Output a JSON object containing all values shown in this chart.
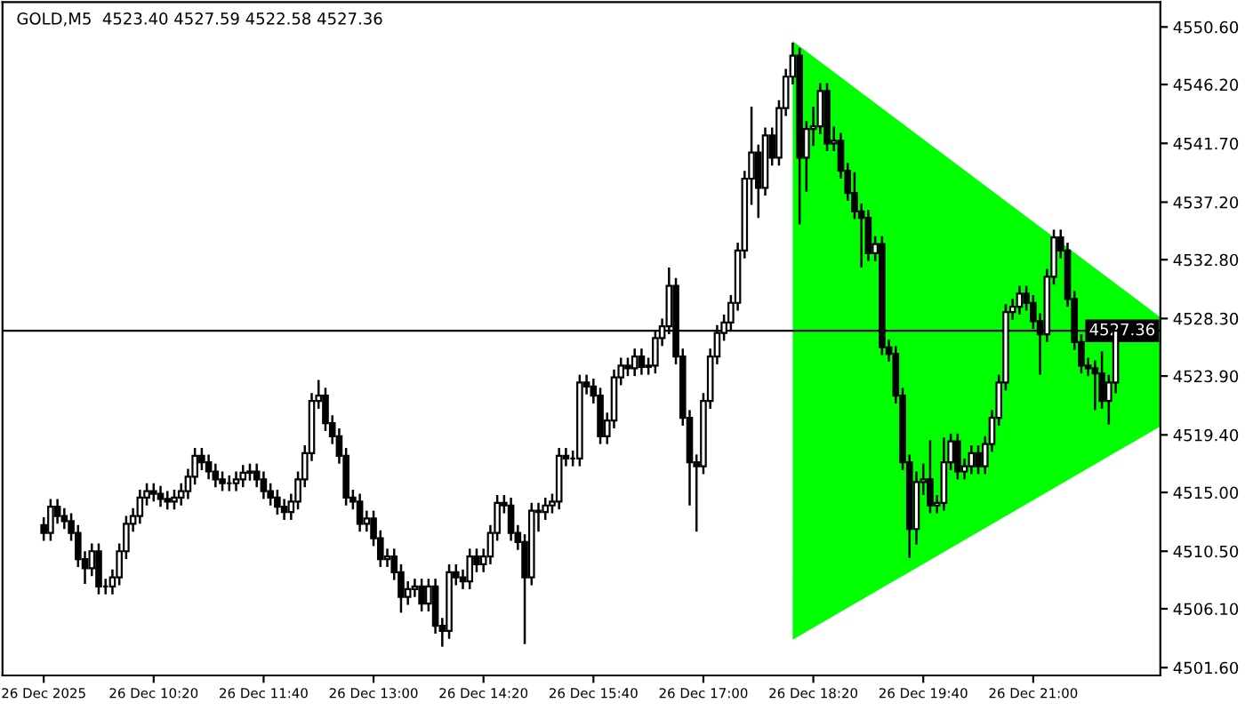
{
  "chart_data": {
    "type": "candlestick",
    "title": "GOLD,M5  4523.40 4527.59 4522.58 4527.36",
    "categories": [
      "26 Dec 2025",
      null,
      null,
      null,
      null,
      null,
      null,
      null,
      null,
      null,
      null,
      null,
      null,
      null,
      null,
      null,
      "26 Dec 10:20",
      null,
      null,
      null,
      null,
      null,
      null,
      null,
      null,
      null,
      null,
      null,
      null,
      null,
      null,
      null,
      "26 Dec 11:40",
      null,
      null,
      null,
      null,
      null,
      null,
      null,
      null,
      null,
      null,
      null,
      null,
      null,
      null,
      null,
      "26 Dec 13:00",
      null,
      null,
      null,
      null,
      null,
      null,
      null,
      null,
      null,
      null,
      null,
      null,
      null,
      null,
      null,
      "26 Dec 14:20",
      null,
      null,
      null,
      null,
      null,
      null,
      null,
      null,
      null,
      null,
      null,
      null,
      null,
      null,
      null,
      "26 Dec 15:40",
      null,
      null,
      null,
      null,
      null,
      null,
      null,
      null,
      null,
      null,
      null,
      null,
      null,
      null,
      null,
      "26 Dec 17:00",
      null,
      null,
      null,
      null,
      null,
      null,
      null,
      null,
      null,
      null,
      null,
      null,
      null,
      null,
      null,
      "26 Dec 18:20",
      null,
      null,
      null,
      null,
      null,
      null,
      null,
      null,
      null,
      null,
      null,
      null,
      null,
      null,
      null,
      "26 Dec 19:40",
      null,
      null,
      null,
      null,
      null,
      null,
      null,
      null,
      null,
      null,
      null,
      null,
      null,
      null,
      null,
      "26 Dec 21:00",
      null,
      null,
      null,
      null,
      null,
      null,
      null,
      null,
      null,
      null,
      null,
      null
    ],
    "ohlc": [
      [
        4512.5,
        4513.1,
        4511.3,
        4511.9
      ],
      [
        4511.9,
        4514.5,
        4511.3,
        4513.9
      ],
      [
        4513.9,
        4514.5,
        4512.6,
        4513.2
      ],
      [
        4513.2,
        4513.8,
        4512.2,
        4512.8
      ],
      [
        4512.8,
        4513.4,
        4511.3,
        4511.9
      ],
      [
        4511.9,
        4512.5,
        4509.3,
        4509.9
      ],
      [
        4509.9,
        4510.5,
        4508.0,
        4509.2
      ],
      [
        4509.2,
        4511.1,
        4508.6,
        4510.5
      ],
      [
        4510.5,
        4511.1,
        4507.2,
        4507.8
      ],
      [
        4507.8,
        4508.4,
        4507.2,
        4507.8
      ],
      [
        4507.8,
        4509.1,
        4507.2,
        4508.5
      ],
      [
        4508.5,
        4511.1,
        4507.9,
        4510.5
      ],
      [
        4510.5,
        4513.2,
        4509.9,
        4512.6
      ],
      [
        4512.6,
        4513.8,
        4512.0,
        4513.2
      ],
      [
        4513.2,
        4515.2,
        4512.6,
        4514.6
      ],
      [
        4514.6,
        4515.7,
        4514.0,
        4515.1
      ],
      [
        4515.1,
        4515.7,
        4514.3,
        4514.9
      ],
      [
        4514.9,
        4515.5,
        4513.9,
        4514.5
      ],
      [
        4514.5,
        4515.1,
        4513.7,
        4514.3
      ],
      [
        4514.3,
        4515.2,
        4513.7,
        4514.6
      ],
      [
        4514.6,
        4515.7,
        4514.0,
        4515.1
      ],
      [
        4515.1,
        4516.8,
        4514.5,
        4516.2
      ],
      [
        4516.2,
        4518.4,
        4515.6,
        4517.8
      ],
      [
        4517.8,
        4518.4,
        4516.7,
        4517.3
      ],
      [
        4517.3,
        4517.9,
        4516.0,
        4516.6
      ],
      [
        4516.6,
        4517.2,
        4515.4,
        4516.0
      ],
      [
        4516.0,
        4516.6,
        4515.1,
        4515.7
      ],
      [
        4515.7,
        4516.3,
        4515.1,
        4515.7
      ],
      [
        4515.7,
        4516.6,
        4515.1,
        4516.0
      ],
      [
        4516.0,
        4517.1,
        4515.4,
        4516.5
      ],
      [
        4516.5,
        4517.2,
        4515.9,
        4516.6
      ],
      [
        4516.6,
        4517.2,
        4515.4,
        4516.0
      ],
      [
        4516.0,
        4516.6,
        4514.5,
        4515.1
      ],
      [
        4515.1,
        4515.7,
        4514.0,
        4514.6
      ],
      [
        4514.6,
        4515.2,
        4513.3,
        4513.9
      ],
      [
        4513.9,
        4514.5,
        4512.9,
        4513.5
      ],
      [
        4513.5,
        4514.9,
        4512.9,
        4514.3
      ],
      [
        4514.3,
        4516.6,
        4513.7,
        4516.0
      ],
      [
        4516.0,
        4518.6,
        4515.4,
        4518.0
      ],
      [
        4518.0,
        4522.6,
        4517.4,
        4522.0
      ],
      [
        4522.0,
        4523.6,
        4521.4,
        4522.4
      ],
      [
        4522.4,
        4523.0,
        4519.7,
        4520.3
      ],
      [
        4520.3,
        4520.9,
        4518.7,
        4519.3
      ],
      [
        4519.3,
        4519.9,
        4517.2,
        4517.8
      ],
      [
        4517.8,
        4518.4,
        4514.0,
        4514.6
      ],
      [
        4514.6,
        4515.2,
        4513.7,
        4514.3
      ],
      [
        4514.3,
        4514.9,
        4512.0,
        4512.6
      ],
      [
        4512.6,
        4513.6,
        4512.0,
        4513.0
      ],
      [
        4513.0,
        4513.6,
        4510.9,
        4511.5
      ],
      [
        4511.5,
        4512.1,
        4509.3,
        4509.9
      ],
      [
        4509.9,
        4510.7,
        4509.3,
        4510.1
      ],
      [
        4510.1,
        4510.7,
        4508.3,
        4508.9
      ],
      [
        4508.9,
        4509.5,
        4505.8,
        4507.0
      ],
      [
        4507.0,
        4508.2,
        4506.4,
        4507.6
      ],
      [
        4507.6,
        4508.4,
        4507.0,
        4507.8
      ],
      [
        4507.8,
        4508.4,
        4505.9,
        4506.5
      ],
      [
        4506.5,
        4508.4,
        4505.9,
        4507.8
      ],
      [
        4507.8,
        4508.4,
        4504.2,
        4504.8
      ],
      [
        4504.8,
        4505.4,
        4503.2,
        4504.4
      ],
      [
        4504.4,
        4509.5,
        4503.8,
        4508.9
      ],
      [
        4508.9,
        4509.5,
        4507.9,
        4508.5
      ],
      [
        4508.5,
        4509.1,
        4507.6,
        4508.2
      ],
      [
        4508.2,
        4510.7,
        4507.6,
        4510.1
      ],
      [
        4510.1,
        4510.7,
        4508.9,
        4509.5
      ],
      [
        4509.5,
        4510.7,
        4508.9,
        4510.1
      ],
      [
        4510.1,
        4512.5,
        4509.5,
        4511.9
      ],
      [
        4511.9,
        4514.8,
        4511.3,
        4514.2
      ],
      [
        4514.2,
        4514.8,
        4513.4,
        4514.0
      ],
      [
        4514.0,
        4514.6,
        4511.3,
        4511.9
      ],
      [
        4511.9,
        4512.5,
        4510.6,
        4511.2
      ],
      [
        4511.2,
        4511.8,
        4503.4,
        4508.5
      ],
      [
        4508.5,
        4514.2,
        4507.9,
        4513.6
      ],
      [
        4513.6,
        4514.2,
        4512.0,
        4513.5
      ],
      [
        4513.5,
        4514.6,
        4512.9,
        4514.0
      ],
      [
        4514.0,
        4514.9,
        4513.4,
        4514.3
      ],
      [
        4514.3,
        4518.4,
        4513.7,
        4517.8
      ],
      [
        4517.8,
        4518.4,
        4517.0,
        4517.6
      ],
      [
        4517.6,
        4518.2,
        4517.0,
        4517.6
      ],
      [
        4517.6,
        4524.0,
        4517.0,
        4523.4
      ],
      [
        4523.4,
        4524.0,
        4522.5,
        4523.1
      ],
      [
        4523.1,
        4523.7,
        4521.8,
        4522.4
      ],
      [
        4522.4,
        4523.0,
        4518.7,
        4519.3
      ],
      [
        4519.3,
        4521.1,
        4518.7,
        4520.5
      ],
      [
        4520.5,
        4524.4,
        4519.9,
        4523.8
      ],
      [
        4523.8,
        4525.3,
        4523.2,
        4524.7
      ],
      [
        4524.7,
        4525.3,
        4523.9,
        4524.5
      ],
      [
        4524.5,
        4526.0,
        4523.9,
        4525.4
      ],
      [
        4525.4,
        4526.0,
        4524.0,
        4524.6
      ],
      [
        4524.6,
        4525.3,
        4524.0,
        4524.7
      ],
      [
        4524.7,
        4527.4,
        4524.1,
        4526.8
      ],
      [
        4526.8,
        4528.3,
        4526.2,
        4527.7
      ],
      [
        4527.7,
        4532.2,
        4527.1,
        4530.8
      ],
      [
        4530.8,
        4531.4,
        4524.8,
        4525.4
      ],
      [
        4525.4,
        4526.0,
        4520.1,
        4520.7
      ],
      [
        4520.7,
        4521.3,
        4514.0,
        4517.3
      ],
      [
        4517.3,
        4517.9,
        4512.0,
        4517.0
      ],
      [
        4517.0,
        4522.6,
        4516.4,
        4522.0
      ],
      [
        4522.0,
        4526.0,
        4521.4,
        4525.4
      ],
      [
        4525.4,
        4527.8,
        4524.8,
        4527.2
      ],
      [
        4527.2,
        4528.6,
        4526.6,
        4528.0
      ],
      [
        4528.0,
        4530.1,
        4527.4,
        4529.5
      ],
      [
        4529.5,
        4534.1,
        4528.9,
        4533.5
      ],
      [
        4533.5,
        4539.6,
        4532.9,
        4539.0
      ],
      [
        4539.0,
        4544.5,
        4537.0,
        4541.0
      ],
      [
        4541.0,
        4541.6,
        4536.0,
        4538.3
      ],
      [
        4538.3,
        4542.9,
        4537.7,
        4542.3
      ],
      [
        4542.3,
        4542.9,
        4540.0,
        4540.6
      ],
      [
        4540.6,
        4545.0,
        4540.0,
        4544.4
      ],
      [
        4544.4,
        4547.4,
        4543.8,
        4546.8
      ],
      [
        4546.8,
        4549.4,
        4546.2,
        4548.4
      ],
      [
        4548.4,
        4549.0,
        4535.5,
        4540.6
      ],
      [
        4540.6,
        4543.4,
        4538.0,
        4542.8
      ],
      [
        4542.8,
        4544.5,
        4541.5,
        4543.0
      ],
      [
        4543.0,
        4546.3,
        4542.4,
        4545.7
      ],
      [
        4545.7,
        4546.3,
        4541.1,
        4541.7
      ],
      [
        4541.7,
        4543.0,
        4541.1,
        4541.9
      ],
      [
        4541.9,
        4542.5,
        4539.0,
        4539.6
      ],
      [
        4539.6,
        4540.2,
        4537.3,
        4537.9
      ],
      [
        4537.9,
        4539.5,
        4535.9,
        4536.5
      ],
      [
        4536.5,
        4537.1,
        4532.2,
        4536.0
      ],
      [
        4536.0,
        4536.6,
        4532.7,
        4533.3
      ],
      [
        4533.3,
        4534.6,
        4532.7,
        4534.0
      ],
      [
        4534.0,
        4534.6,
        4525.5,
        4526.1
      ],
      [
        4526.1,
        4526.7,
        4525.0,
        4525.6
      ],
      [
        4525.6,
        4526.2,
        4521.8,
        4522.4
      ],
      [
        4522.4,
        4523.0,
        4516.7,
        4517.3
      ],
      [
        4517.3,
        4517.9,
        4510.0,
        4512.2
      ],
      [
        4512.2,
        4516.6,
        4511.0,
        4515.8
      ],
      [
        4515.8,
        4517.2,
        4514.8,
        4516.0
      ],
      [
        4516.0,
        4519.0,
        4513.4,
        4514.0
      ],
      [
        4514.0,
        4514.8,
        4513.4,
        4514.2
      ],
      [
        4514.2,
        4519.2,
        4513.6,
        4517.3
      ],
      [
        4517.3,
        4519.5,
        4516.7,
        4518.9
      ],
      [
        4518.9,
        4519.5,
        4516.0,
        4516.6
      ],
      [
        4516.6,
        4517.6,
        4516.0,
        4517.0
      ],
      [
        4517.0,
        4518.6,
        4516.4,
        4518.0
      ],
      [
        4518.0,
        4518.6,
        4516.4,
        4517.0
      ],
      [
        4517.0,
        4519.3,
        4516.4,
        4518.7
      ],
      [
        4518.7,
        4521.3,
        4518.1,
        4520.7
      ],
      [
        4520.7,
        4524.0,
        4520.1,
        4523.4
      ],
      [
        4523.4,
        4529.4,
        4522.8,
        4528.8
      ],
      [
        4528.8,
        4529.8,
        4528.2,
        4529.2
      ],
      [
        4529.2,
        4530.8,
        4528.6,
        4530.2
      ],
      [
        4530.2,
        4530.8,
        4528.9,
        4529.5
      ],
      [
        4529.5,
        4530.1,
        4527.5,
        4528.1
      ],
      [
        4528.1,
        4528.7,
        4524.0,
        4527.1
      ],
      [
        4527.1,
        4532.1,
        4526.5,
        4531.5
      ],
      [
        4531.5,
        4535.1,
        4530.9,
        4534.5
      ],
      [
        4534.5,
        4535.1,
        4532.9,
        4533.5
      ],
      [
        4533.5,
        4534.1,
        4529.2,
        4529.8
      ],
      [
        4529.8,
        4530.4,
        4525.9,
        4526.5
      ],
      [
        4526.5,
        4527.1,
        4524.1,
        4524.7
      ],
      [
        4524.7,
        4525.3,
        4523.9,
        4524.5
      ],
      [
        4524.5,
        4525.1,
        4521.3,
        4524.1
      ],
      [
        4524.1,
        4525.8,
        4521.4,
        4522.0
      ],
      [
        4522.0,
        4524.0,
        4520.2,
        4523.4
      ],
      [
        4523.4,
        4527.59,
        4522.58,
        4527.36
      ]
    ],
    "ylim": [
      4501.0,
      4552.5
    ],
    "yticks": [
      {
        "value": 4501.6,
        "label": "4501.60"
      },
      {
        "value": 4506.1,
        "label": "4506.10"
      },
      {
        "value": 4510.5,
        "label": "4510.50"
      },
      {
        "value": 4515.0,
        "label": "4515.00"
      },
      {
        "value": 4519.4,
        "label": "4519.40"
      },
      {
        "value": 4523.9,
        "label": "4523.90"
      },
      {
        "value": 4528.3,
        "label": "4528.30"
      },
      {
        "value": 4532.8,
        "label": "4532.80"
      },
      {
        "value": 4537.2,
        "label": "4537.20"
      },
      {
        "value": 4541.7,
        "label": "4541.70"
      },
      {
        "value": 4546.2,
        "label": "4546.20"
      },
      {
        "value": 4550.6,
        "label": "4550.60"
      }
    ],
    "ref_lines": [
      {
        "axis": "y",
        "value": 4527.36,
        "label": "4527.36",
        "color": "#000000"
      }
    ]
  }
}
